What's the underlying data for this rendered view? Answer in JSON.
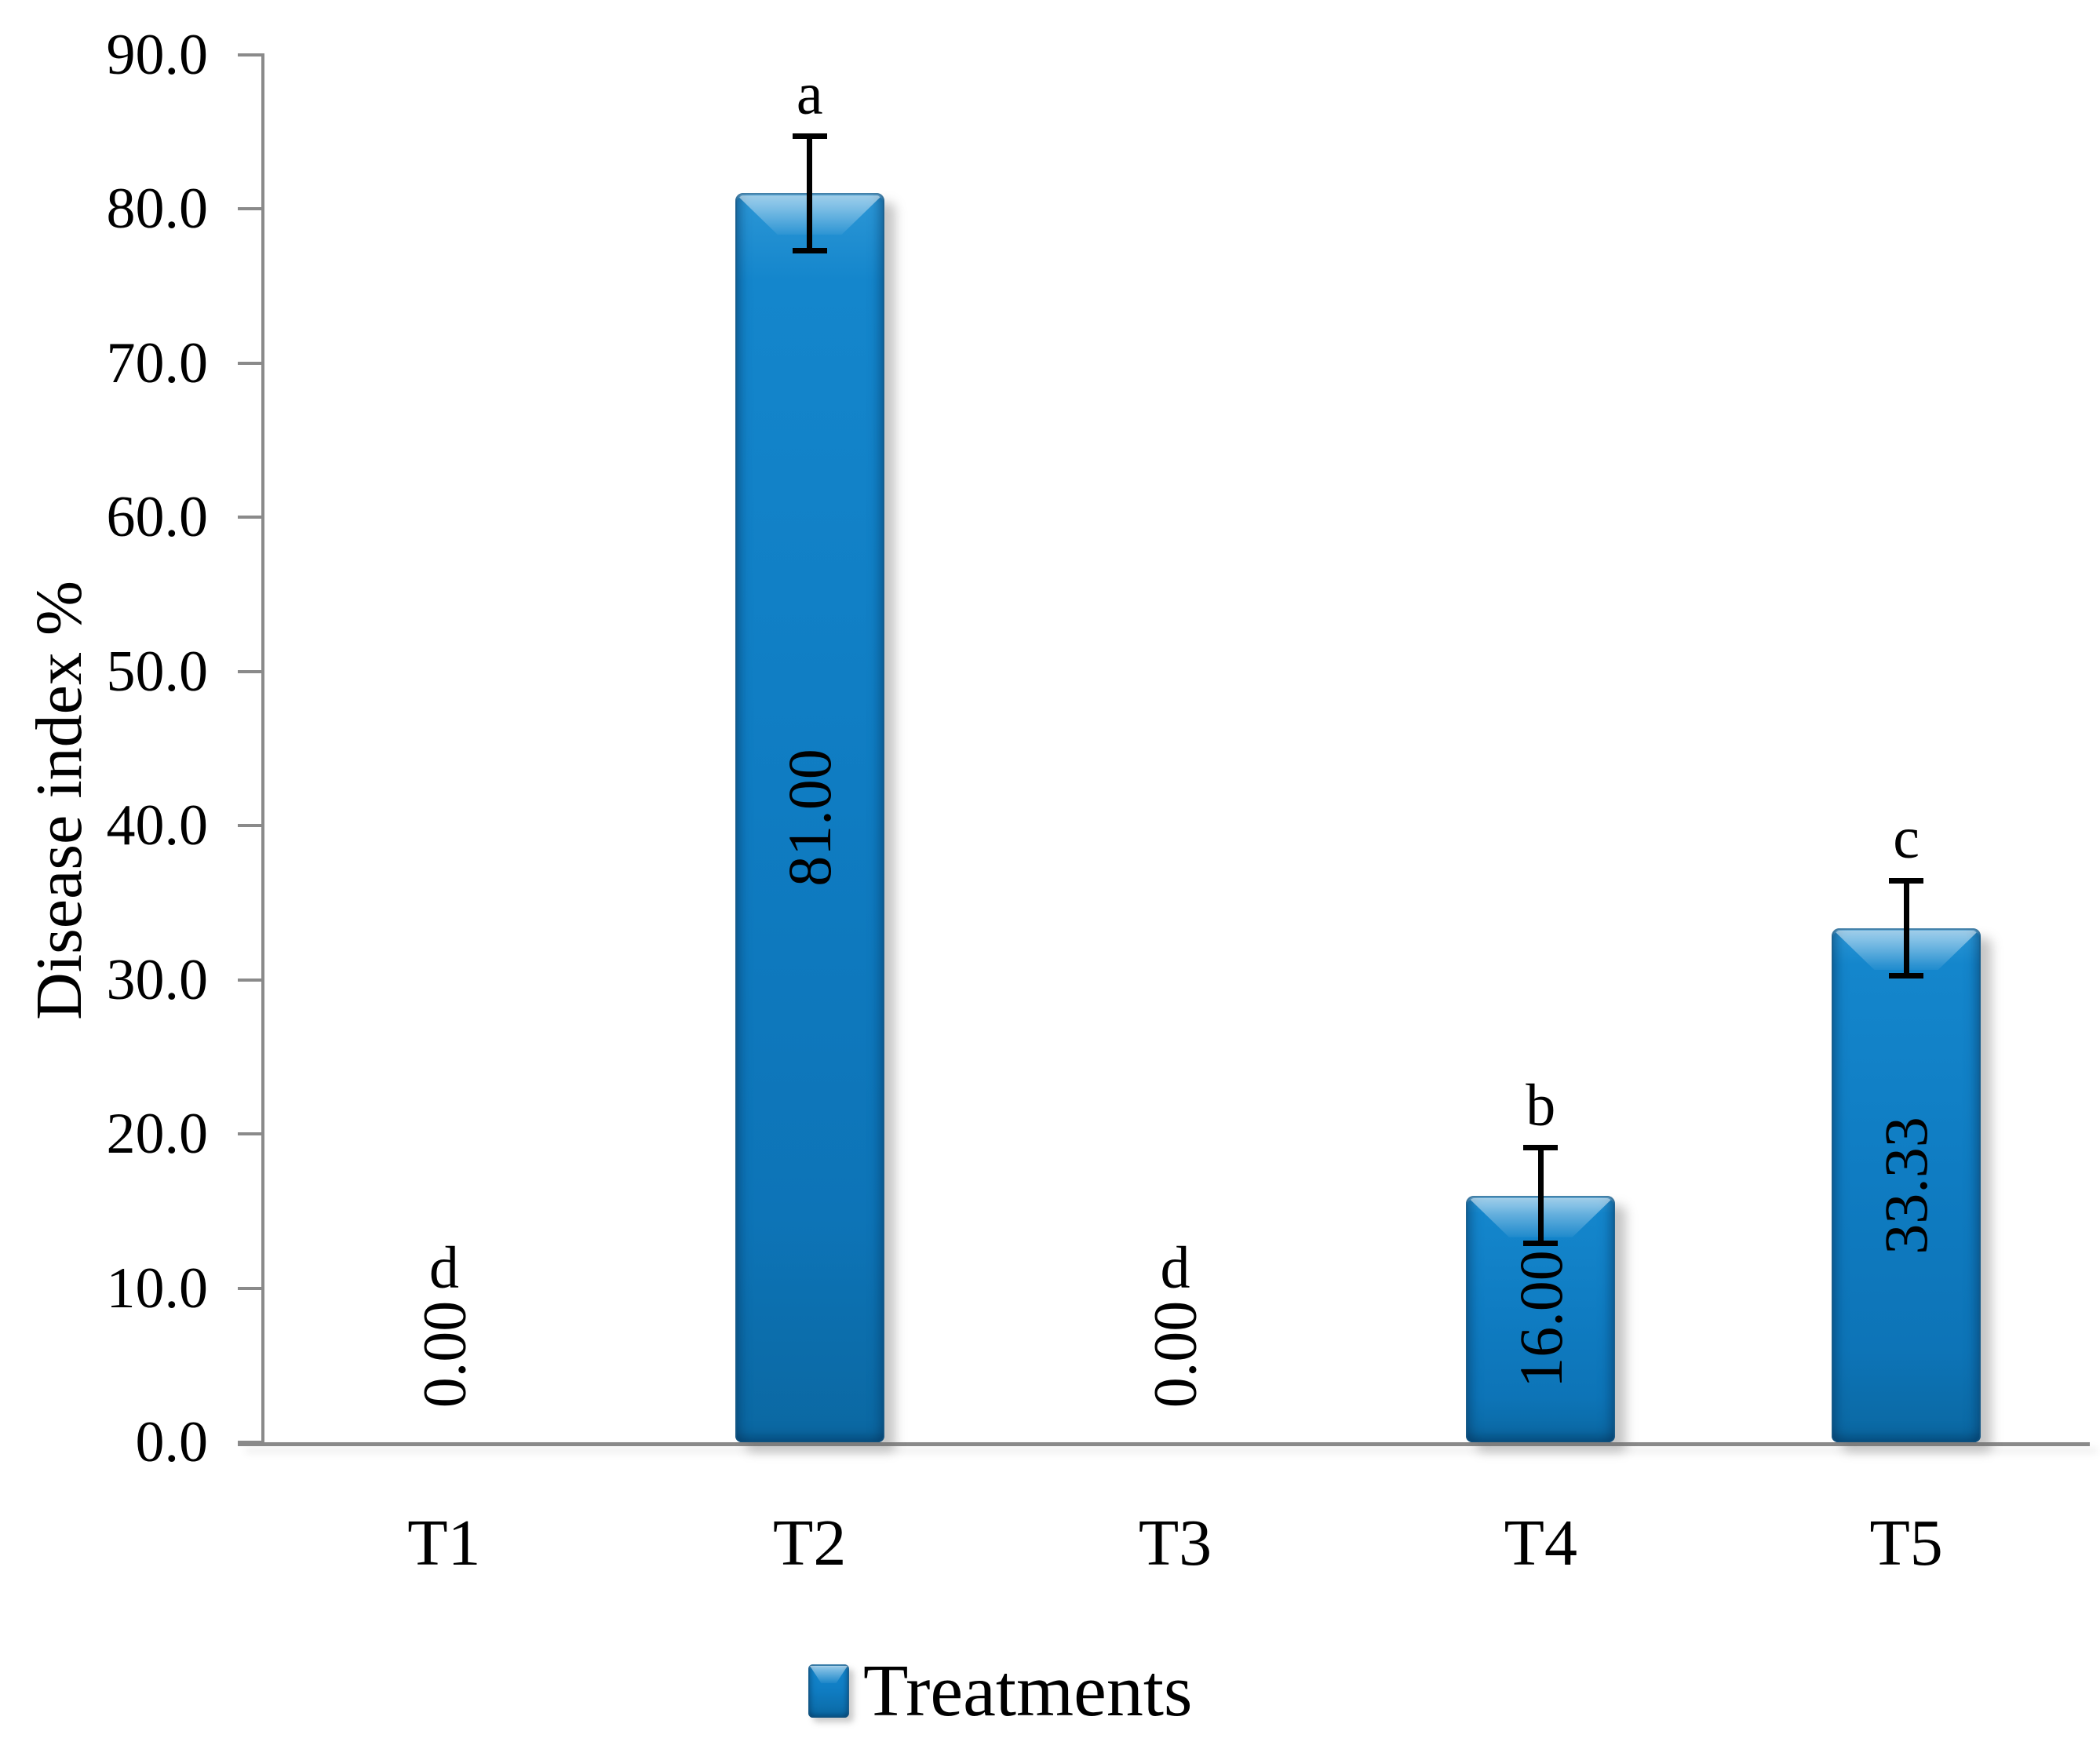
{
  "figure": {
    "background_color": "#ffffff",
    "axis_line_color": "#8a8a8a",
    "error_bar_color": "#000000",
    "text_color": "#000000",
    "bar_fill_color": "#0f7cc2",
    "bar_edge_color": "#105482"
  },
  "chart_data": {
    "type": "bar",
    "title": "",
    "ylabel": "Disease index %",
    "xlabel": "Treatments",
    "ylim": [
      0,
      90
    ],
    "ytick_step": 10,
    "grid": false,
    "legend_position": "bottom",
    "legend_label": "Treatments",
    "y_ticks": [
      {
        "label": "0.0",
        "value": 0
      },
      {
        "label": "10.0",
        "value": 10
      },
      {
        "label": "20.0",
        "value": 20
      },
      {
        "label": "30.0",
        "value": 30
      },
      {
        "label": "40.0",
        "value": 40
      },
      {
        "label": "50.0",
        "value": 50
      },
      {
        "label": "60.0",
        "value": 60
      },
      {
        "label": "70.0",
        "value": 70
      },
      {
        "label": "80.0",
        "value": 80
      },
      {
        "label": "90.0",
        "value": 90
      }
    ],
    "categories": [
      "T1",
      "T2",
      "T3",
      "T4",
      "T5"
    ],
    "series": [
      {
        "name": "Treatments",
        "values": [
          0.0,
          81.0,
          0.0,
          16.0,
          33.33
        ],
        "value_labels": [
          "0.00",
          "81.00",
          "0.00",
          "16.00",
          "33.33"
        ],
        "error_bars": [
          0,
          3.7,
          0,
          3.1,
          3.1
        ],
        "sig_letters": [
          "d",
          "a",
          "d",
          "b",
          "c"
        ]
      }
    ]
  }
}
